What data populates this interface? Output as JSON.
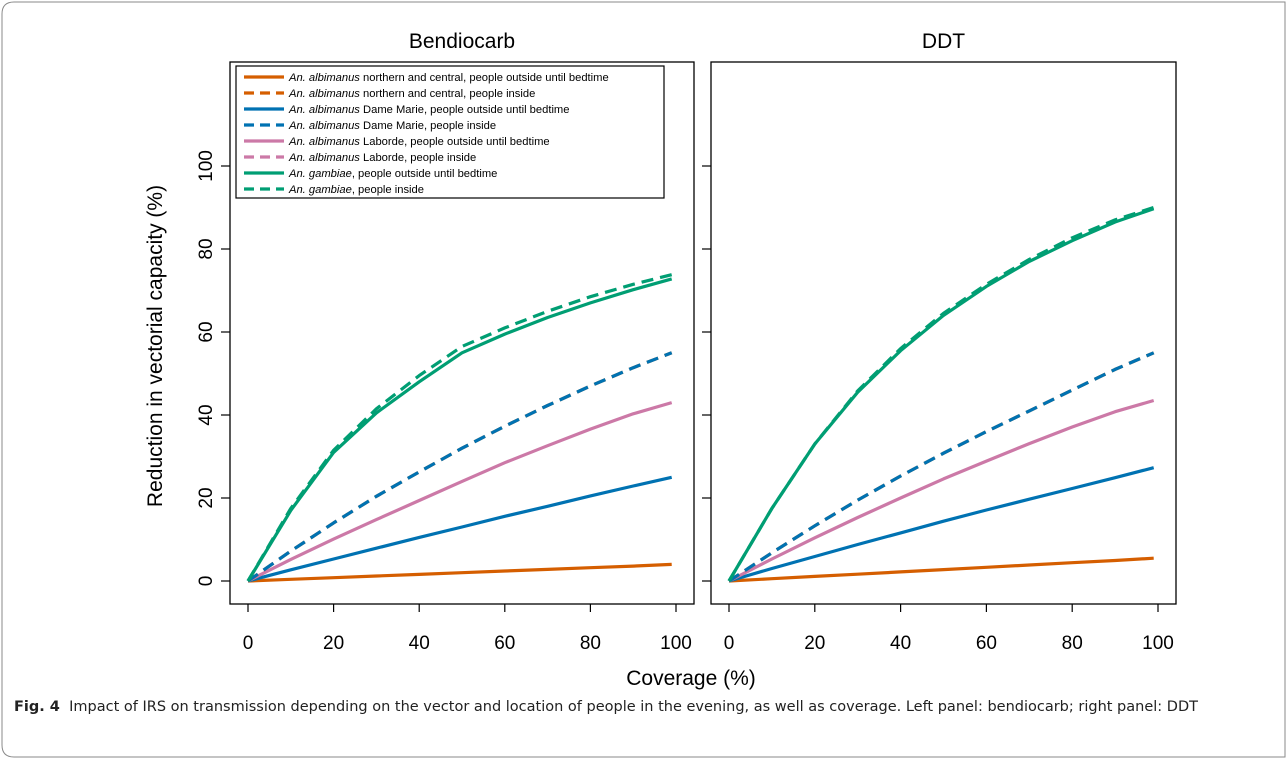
{
  "figure": {
    "xlabel": "Coverage (%)",
    "ylabel": "Reduction in vectorial capacity (%)",
    "caption_label": "Fig. 4",
    "caption_text": "Impact of IRS on transmission depending on the vector and location of people in the evening, as well as coverage. Left panel: bendiocarb; right panel: DDT"
  },
  "legend": [
    {
      "species": "An. albimanus",
      "text": " northern and central, people outside until bedtime",
      "color": "#D55E00",
      "style": "solid"
    },
    {
      "species": "An. albimanus",
      "text": " northern and central, people inside",
      "color": "#D55E00",
      "style": "dashed"
    },
    {
      "species": "An. albimanus",
      "text": " Dame Marie, people outside until bedtime",
      "color": "#0072B2",
      "style": "solid"
    },
    {
      "species": "An. albimanus",
      "text": " Dame Marie, people inside",
      "color": "#0072B2",
      "style": "dashed"
    },
    {
      "species": "An. albimanus",
      "text": " Laborde, people outside until bedtime",
      "color": "#CC79A7",
      "style": "solid"
    },
    {
      "species": "An. albimanus",
      "text": " Laborde, people inside",
      "color": "#CC79A7",
      "style": "dashed"
    },
    {
      "species": "An. gambiae",
      "text": ", people outside until bedtime",
      "color": "#009E73",
      "style": "solid"
    },
    {
      "species": "An. gambiae",
      "text": ", people inside",
      "color": "#009E73",
      "style": "dashed"
    }
  ],
  "chart_data": [
    {
      "type": "line",
      "title": "Bendiocarb",
      "xlim": [
        0,
        100
      ],
      "ylim": [
        0,
        100
      ],
      "xticks": [
        0,
        20,
        40,
        60,
        80,
        100
      ],
      "yticks": [
        0,
        20,
        40,
        60,
        80,
        100
      ],
      "x": [
        0,
        10,
        20,
        30,
        40,
        50,
        60,
        70,
        80,
        90,
        99
      ],
      "series": [
        {
          "color": "#D55E00",
          "style": "solid",
          "values": [
            0,
            0.4,
            0.8,
            1.2,
            1.6,
            2.0,
            2.4,
            2.8,
            3.2,
            3.6,
            4
          ]
        },
        {
          "color": "#0072B2",
          "style": "solid",
          "values": [
            0,
            2.7,
            5.3,
            7.9,
            10.5,
            13.0,
            15.6,
            18.0,
            20.5,
            22.9,
            25
          ]
        },
        {
          "color": "#CC79A7",
          "style": "solid",
          "values": [
            0,
            5.2,
            10.1,
            14.8,
            19.4,
            24.0,
            28.5,
            32.6,
            36.6,
            40.3,
            43
          ]
        },
        {
          "color": "#D55E00",
          "style": "dashed",
          "values": [
            0,
            7.2,
            14.0,
            20.4,
            26.3,
            32.0,
            37.3,
            42.3,
            47.0,
            51.4,
            55
          ]
        },
        {
          "color": "#0072B2",
          "style": "dashed",
          "values": [
            0,
            7.2,
            14.0,
            20.4,
            26.3,
            32.0,
            37.3,
            42.3,
            47.0,
            51.4,
            55
          ]
        },
        {
          "color": "#009E73",
          "style": "solid",
          "values": [
            0,
            17.0,
            31.0,
            40.5,
            48.0,
            55.0,
            59.5,
            63.5,
            67.0,
            70.2,
            72.8
          ]
        },
        {
          "color": "#009E73",
          "style": "dashed",
          "values": [
            0,
            17.5,
            31.5,
            41.5,
            49.5,
            56.5,
            61.0,
            65.0,
            68.5,
            71.5,
            73.8
          ]
        }
      ]
    },
    {
      "type": "line",
      "title": "DDT",
      "xlim": [
        0,
        100
      ],
      "ylim": [
        0,
        100
      ],
      "xticks": [
        0,
        20,
        40,
        60,
        80,
        100
      ],
      "yticks": [
        0,
        20,
        40,
        60,
        80,
        100
      ],
      "x": [
        0,
        10,
        20,
        30,
        40,
        50,
        60,
        70,
        80,
        90,
        99
      ],
      "series": [
        {
          "color": "#D55E00",
          "style": "solid",
          "values": [
            0,
            0.55,
            1.1,
            1.65,
            2.2,
            2.75,
            3.3,
            3.85,
            4.4,
            4.95,
            5.5
          ]
        },
        {
          "color": "#0072B2",
          "style": "solid",
          "values": [
            0,
            3.0,
            5.9,
            8.8,
            11.6,
            14.4,
            17.1,
            19.7,
            22.3,
            24.9,
            27.3
          ]
        },
        {
          "color": "#CC79A7",
          "style": "solid",
          "values": [
            0,
            5.3,
            10.4,
            15.3,
            20.0,
            24.6,
            28.9,
            33.1,
            37.1,
            40.8,
            43.5
          ]
        },
        {
          "color": "#D55E00",
          "style": "dashed",
          "values": [
            0,
            6.8,
            13.3,
            19.5,
            25.3,
            30.8,
            36.0,
            41.0,
            46.0,
            51.0,
            55
          ]
        },
        {
          "color": "#0072B2",
          "style": "dashed",
          "values": [
            0,
            6.8,
            13.3,
            19.5,
            25.3,
            30.8,
            36.0,
            41.0,
            46.0,
            51.0,
            55
          ]
        },
        {
          "color": "#009E73",
          "style": "solid",
          "values": [
            0,
            17.5,
            33.0,
            45.5,
            55.5,
            64.0,
            71.0,
            77.0,
            82.0,
            86.5,
            89.7
          ]
        },
        {
          "color": "#009E73",
          "style": "dashed",
          "values": [
            0,
            17.5,
            33.0,
            45.8,
            56.0,
            64.5,
            71.5,
            77.5,
            82.7,
            87.0,
            90.0
          ]
        }
      ]
    }
  ]
}
